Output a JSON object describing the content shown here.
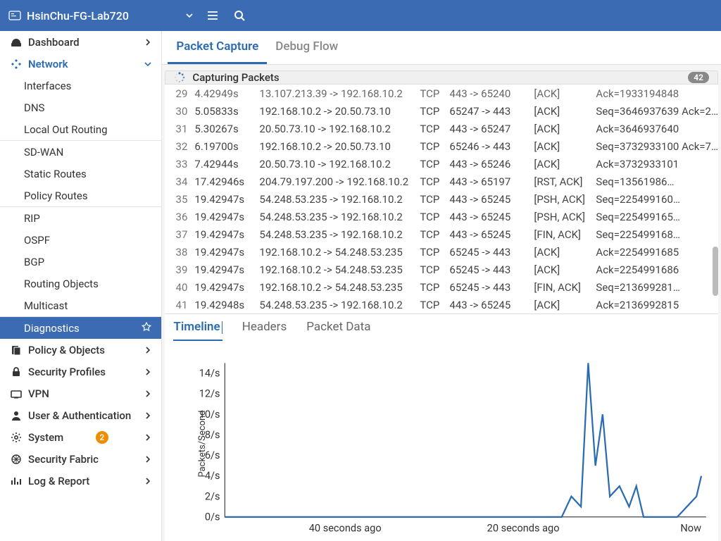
{
  "header": {
    "device_name": "HsinChu-FG-Lab720"
  },
  "sidebar": {
    "items": [
      {
        "label": "Dashboard",
        "icon": "dashboard",
        "arrow": "right"
      },
      {
        "label": "Network",
        "icon": "network",
        "arrow": "down",
        "active": true,
        "children": [
          {
            "label": "Interfaces"
          },
          {
            "label": "DNS"
          },
          {
            "label": "Local Out Routing"
          },
          {
            "label": "SD-WAN",
            "sep_before": true
          },
          {
            "label": "Static Routes"
          },
          {
            "label": "Policy Routes"
          },
          {
            "label": "RIP",
            "sep_before": true
          },
          {
            "label": "OSPF"
          },
          {
            "label": "BGP"
          },
          {
            "label": "Routing Objects"
          },
          {
            "label": "Multicast"
          },
          {
            "label": "Diagnostics",
            "selected": true,
            "star": true,
            "sep_before": true
          }
        ]
      },
      {
        "label": "Policy & Objects",
        "icon": "policy",
        "arrow": "right"
      },
      {
        "label": "Security Profiles",
        "icon": "lock",
        "arrow": "right"
      },
      {
        "label": "VPN",
        "icon": "vpn",
        "arrow": "right"
      },
      {
        "label": "User & Authentication",
        "icon": "user",
        "arrow": "right"
      },
      {
        "label": "System",
        "icon": "gear",
        "arrow": "right",
        "badge": "2"
      },
      {
        "label": "Security Fabric",
        "icon": "fabric",
        "arrow": "right"
      },
      {
        "label": "Log & Report",
        "icon": "report",
        "arrow": "right"
      }
    ]
  },
  "main": {
    "tabs": [
      {
        "label": "Packet Capture",
        "active": true
      },
      {
        "label": "Debug Flow"
      }
    ],
    "capture": {
      "title": "Capturing Packets",
      "count": "42",
      "columns": [
        "num",
        "time",
        "addr",
        "proto",
        "ports",
        "flags",
        "info"
      ],
      "rows": [
        {
          "num": "29",
          "time": "4.42949s",
          "addr": "13.107.213.39 -> 192.168.10.2",
          "proto": "TCP",
          "ports": "443 -> 65240",
          "flags": "[ACK]",
          "info": "Ack=1933194848",
          "truncated": true
        },
        {
          "num": "30",
          "time": "5.05833s",
          "addr": "192.168.10.2 -> 20.50.73.10",
          "proto": "TCP",
          "ports": "65247 -> 443",
          "flags": "[ACK]",
          "info": "Seq=3646937639  Ack=2…"
        },
        {
          "num": "31",
          "time": "5.30267s",
          "addr": "20.50.73.10 -> 192.168.10.2",
          "proto": "TCP",
          "ports": "443 -> 65247",
          "flags": "[ACK]",
          "info": "Ack=3646937640"
        },
        {
          "num": "32",
          "time": "6.19700s",
          "addr": "192.168.10.2 -> 20.50.73.10",
          "proto": "TCP",
          "ports": "65246 -> 443",
          "flags": "[ACK]",
          "info": "Seq=3732933100  Ack=7…"
        },
        {
          "num": "33",
          "time": "7.42944s",
          "addr": "20.50.73.10 -> 192.168.10.2",
          "proto": "TCP",
          "ports": "443 -> 65246",
          "flags": "[ACK]",
          "info": "Ack=3732933101"
        },
        {
          "num": "34",
          "time": "17.42946s",
          "addr": "204.79.197.200 -> 192.168.10.2",
          "proto": "TCP",
          "ports": "443 -> 65197",
          "flags": "[RST, ACK]",
          "info": "Seq=13561986…"
        },
        {
          "num": "35",
          "time": "19.42947s",
          "addr": "54.248.53.235 -> 192.168.10.2",
          "proto": "TCP",
          "ports": "443 -> 65245",
          "flags": "[PSH, ACK]",
          "info": "Seq=225499160…"
        },
        {
          "num": "36",
          "time": "19.42947s",
          "addr": "54.248.53.235 -> 192.168.10.2",
          "proto": "TCP",
          "ports": "443 -> 65245",
          "flags": "[PSH, ACK]",
          "info": "Seq=225499165…"
        },
        {
          "num": "37",
          "time": "19.42947s",
          "addr": "54.248.53.235 -> 192.168.10.2",
          "proto": "TCP",
          "ports": "443 -> 65245",
          "flags": "[FIN, ACK]",
          "info": "Seq=225499168…"
        },
        {
          "num": "38",
          "time": "19.42947s",
          "addr": "192.168.10.2 -> 54.248.53.235",
          "proto": "TCP",
          "ports": "65245 -> 443",
          "flags": "[ACK]",
          "info": "Ack=2254991685"
        },
        {
          "num": "39",
          "time": "19.42947s",
          "addr": "192.168.10.2 -> 54.248.53.235",
          "proto": "TCP",
          "ports": "65245 -> 443",
          "flags": "[ACK]",
          "info": "Ack=2254991686"
        },
        {
          "num": "40",
          "time": "19.42947s",
          "addr": "192.168.10.2 -> 54.248.53.235",
          "proto": "TCP",
          "ports": "65245 -> 443",
          "flags": "[FIN, ACK]",
          "info": "Seq=213699281…"
        },
        {
          "num": "41",
          "time": "19.42948s",
          "addr": "54.248.53.235 -> 192.168.10.2",
          "proto": "TCP",
          "ports": "443 -> 65245",
          "flags": "[ACK]",
          "info": "Ack=2136992815"
        }
      ]
    },
    "subtabs": [
      {
        "label": "Timeline",
        "active": true
      },
      {
        "label": "Headers"
      },
      {
        "label": "Packet Data"
      }
    ],
    "chart": {
      "type": "line",
      "ylabel": "Packets/Second",
      "ylim": [
        0,
        14
      ],
      "ytick_step": 2,
      "ytick_suffix": "/s",
      "xticks": [
        "40 seconds ago",
        "20 seconds ago",
        "Now"
      ],
      "xtick_positions": [
        0.25,
        0.62,
        0.99
      ],
      "line_color": "#2b6cb0",
      "line_width": 2,
      "background_color": "#ffffff",
      "grid_color": "#e0e0e0",
      "axis_color": "#333333",
      "label_fontsize": 13,
      "points": [
        {
          "x": 0.0,
          "y": 0
        },
        {
          "x": 0.7,
          "y": 0
        },
        {
          "x": 0.72,
          "y": 2
        },
        {
          "x": 0.74,
          "y": 1
        },
        {
          "x": 0.755,
          "y": 15
        },
        {
          "x": 0.77,
          "y": 5
        },
        {
          "x": 0.785,
          "y": 10
        },
        {
          "x": 0.8,
          "y": 2
        },
        {
          "x": 0.82,
          "y": 3
        },
        {
          "x": 0.84,
          "y": 1
        },
        {
          "x": 0.855,
          "y": 3
        },
        {
          "x": 0.87,
          "y": 0
        },
        {
          "x": 0.94,
          "y": 0
        },
        {
          "x": 0.96,
          "y": 1
        },
        {
          "x": 0.98,
          "y": 2
        },
        {
          "x": 0.99,
          "y": 4
        }
      ]
    }
  },
  "colors": {
    "primary": "#3b6cb3",
    "accent": "#2b6cb0",
    "badge_orange": "#f08c00",
    "badge_grey": "#888888"
  }
}
